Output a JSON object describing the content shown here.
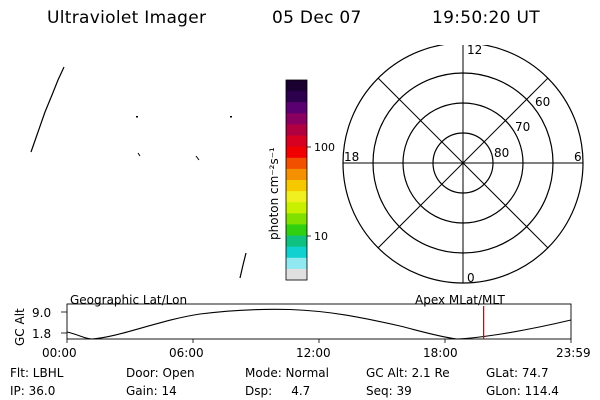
{
  "header": {
    "instrument": "Ultraviolet Imager",
    "date": "05 Dec 07",
    "time": "19:50:20 UT"
  },
  "colorbar": {
    "unit_label": "photon cm⁻²s⁻¹",
    "ticks": [
      "100",
      "10"
    ],
    "colors": [
      "#1a0030",
      "#2d004d",
      "#5a0070",
      "#8a0060",
      "#b00040",
      "#d80020",
      "#f00000",
      "#f05000",
      "#f59000",
      "#f5c800",
      "#f0f020",
      "#c8f000",
      "#80e000",
      "#30d010",
      "#10c080",
      "#10d0d0",
      "#90e8f0",
      "#e0e0e0"
    ]
  },
  "polar": {
    "mlt_labels": {
      "top": "12",
      "bottom": "0",
      "left": "18",
      "right": "6"
    },
    "lat_labels": [
      "60",
      "70",
      "80"
    ]
  },
  "strip": {
    "left_label": "Geographic Lat/Lon",
    "right_label": "Apex  MLat/MLT",
    "ylabel": "GC Alt",
    "y_ticks": [
      "9.0",
      "1.8"
    ],
    "x_ticks": [
      "00:00",
      "06:00",
      "12:00",
      "18:00",
      "23:59"
    ],
    "marker_color": "#e00000",
    "marker_time_hours": 19.84
  },
  "info": {
    "flt": "Flt: LBHL",
    "door": "Door: Open",
    "mode": "Mode: Normal",
    "gc_alt": "GC Alt: 2.1 Re",
    "glat": "GLat:  74.7",
    "ip": "IP: 36.0",
    "gain": "Gain: 14",
    "dsp": "Dsp:     4.7",
    "seq": "Seq: 39",
    "glon": "GLon: 114.4"
  }
}
